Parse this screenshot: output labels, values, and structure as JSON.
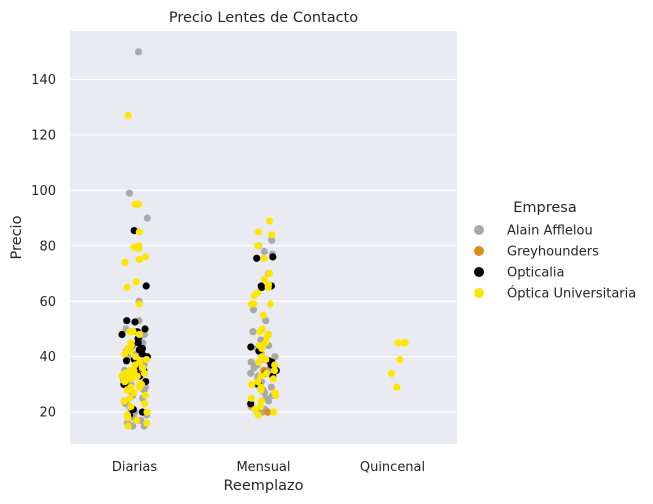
{
  "chart_data": {
    "type": "scatter",
    "title": "Precio Lentes de Contacto",
    "xlabel": "Reemplazo",
    "ylabel": "Precio",
    "categories": [
      "Diarias",
      "Mensual",
      "Quincenal"
    ],
    "ylim": [
      8.5,
      157.5
    ],
    "yticks": [
      20,
      40,
      60,
      80,
      100,
      120,
      140
    ],
    "grid": true,
    "legend": {
      "title": "Empresa",
      "placement": "right",
      "entries": [
        "Alain Afflelou",
        "Greyhounders",
        "Opticalia",
        "Óptica Universitaria"
      ]
    },
    "colors": {
      "background": "#eaeaf2",
      "grid": "#ffffff",
      "Alain Afflelou": "#a9a9a9",
      "Greyhounders": "#d98e1a",
      "Opticalia": "#000000",
      "Óptica Universitaria": "#ffe600"
    },
    "series": [
      {
        "name": "Alain Afflelou",
        "points": [
          {
            "x": "Diarias",
            "y": [
              150,
              99,
              95,
              90,
              60,
              53,
              50,
              48,
              46,
              45,
              44,
              43,
              42,
              42,
              41,
              40,
              39,
              38,
              37,
              36,
              35,
              34,
              33,
              32,
              31,
              30,
              29,
              28,
              27,
              26,
              25,
              24,
              23,
              22,
              21,
              20,
              19,
              18,
              17,
              16,
              15,
              15
            ]
          },
          {
            "x": "Mensual",
            "y": [
              82,
              80,
              78,
              77,
              70,
              57,
              53,
              49,
              48,
              46,
              44,
              43,
              42,
              41,
              40,
              40,
              39,
              38,
              37,
              36,
              35,
              34,
              33,
              32,
              31,
              30,
              29,
              28,
              27,
              26,
              25,
              24,
              22,
              21,
              20
            ]
          }
        ]
      },
      {
        "name": "Greyhounders",
        "points": [
          {
            "x": "Mensual",
            "y": [
              35,
              20,
              19.5
            ]
          }
        ]
      },
      {
        "name": "Opticalia",
        "points": [
          {
            "x": "Diarias",
            "y": [
              85.5,
              65.5,
              53,
              52.5,
              50,
              49,
              48,
              46.5,
              45,
              44,
              43,
              42.5,
              42,
              41,
              40,
              39,
              38.5,
              38,
              36,
              35,
              34,
              33,
              32,
              31,
              30,
              29,
              21,
              20,
              19
            ]
          },
          {
            "x": "Mensual",
            "y": [
              76,
              75.5,
              65.5,
              65.5,
              65,
              43.5,
              42,
              38.5,
              38,
              37,
              35,
              34,
              33,
              30,
              23
            ]
          }
        ]
      },
      {
        "name": "Óptica Universitaria",
        "points": [
          {
            "x": "Diarias",
            "y": [
              127,
              95,
              95,
              85,
              80,
              79.5,
              79,
              76,
              75,
              74,
              67,
              65,
              59,
              49,
              49,
              48,
              45,
              44,
              43,
              42,
              41,
              40,
              39,
              38,
              37,
              36,
              36,
              35,
              35,
              34,
              34,
              34,
              33,
              33,
              33,
              32,
              32,
              32,
              31,
              31,
              30,
              30,
              29,
              29,
              28,
              27,
              26,
              25,
              24,
              23,
              22,
              20,
              19,
              18,
              17,
              16,
              15
            ]
          },
          {
            "x": "Mensual",
            "y": [
              89,
              85,
              84,
              80,
              75.5,
              70,
              68,
              66,
              65,
              63,
              62,
              59,
              59,
              59,
              55,
              50,
              49,
              48,
              47,
              45,
              44,
              43,
              40,
              39,
              38,
              37,
              35,
              34,
              33,
              32,
              31,
              30,
              29,
              28,
              27,
              26,
              25,
              24,
              22,
              21,
              20,
              19
            ]
          },
          {
            "x": "Quincenal",
            "y": [
              45,
              45,
              45,
              39,
              34,
              29
            ]
          }
        ]
      }
    ]
  }
}
